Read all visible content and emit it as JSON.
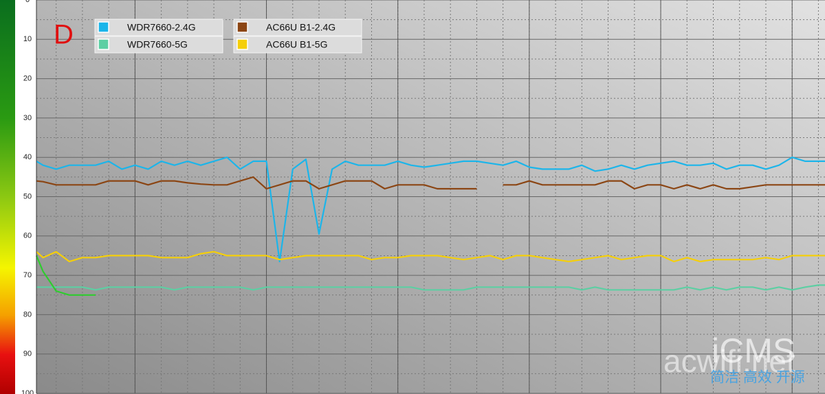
{
  "chart_data": {
    "type": "line",
    "annotation": "D",
    "watermark": [
      "acwifi.net",
      "iCMS",
      "简洁 高效 开源"
    ],
    "x": [
      -7.5,
      -7,
      -6,
      -5,
      -4,
      -3,
      -2,
      -1,
      0,
      1,
      2,
      3,
      4,
      5,
      6,
      7,
      8,
      9,
      10,
      11,
      12,
      13,
      14,
      15,
      16,
      17,
      18,
      19,
      20,
      21,
      22,
      23,
      24,
      25,
      26,
      27,
      28,
      29,
      30,
      31,
      32,
      33,
      34,
      35,
      36,
      37,
      38,
      39,
      40,
      41,
      42,
      43,
      44,
      45,
      46,
      47,
      48,
      49,
      50,
      51,
      52,
      52.5
    ],
    "xlim": [
      -7.5,
      52.5
    ],
    "xticks": [
      0,
      10,
      20,
      30,
      40,
      50
    ],
    "ylim": [
      0,
      100
    ],
    "y_inverted": true,
    "yticks": [
      0,
      10,
      20,
      30,
      40,
      50,
      60,
      70,
      80,
      90,
      100
    ],
    "grid": true,
    "legend_position": "top-left",
    "series": [
      {
        "name": "WDR7660-2.4G",
        "color": "#1bb5ea",
        "values": [
          41,
          42,
          43,
          42,
          42,
          42,
          41,
          43,
          42,
          43,
          41,
          42,
          41,
          42,
          41,
          40,
          43,
          41,
          41,
          66.5,
          43,
          40.5,
          59.5,
          43,
          41,
          42,
          42,
          42,
          41,
          42,
          42.5,
          42,
          41.5,
          41,
          41,
          41.5,
          42,
          41,
          42.5,
          43,
          43,
          43,
          42,
          43.5,
          43,
          42,
          43,
          42,
          41.5,
          41,
          42,
          42,
          41.5,
          43,
          42,
          42,
          43,
          42,
          40,
          41,
          41,
          41
        ]
      },
      {
        "name": "WDR7660-5G",
        "color": "#5ccfa3",
        "values": [
          73,
          73,
          73,
          73,
          73,
          73.7,
          73,
          73,
          73,
          73,
          73,
          73.7,
          73,
          73,
          73,
          73,
          73,
          73.7,
          73,
          73,
          73,
          73,
          73,
          73,
          73,
          73,
          73,
          73,
          73,
          73,
          73.7,
          73.7,
          73.7,
          73.7,
          73,
          73,
          73,
          73,
          73,
          73,
          73,
          73,
          73.7,
          73,
          73.7,
          73.7,
          73.7,
          73.7,
          73.7,
          73.7,
          73,
          73.7,
          73,
          73.7,
          73,
          73,
          73.7,
          73,
          73.7,
          73,
          72.5,
          72.5
        ]
      },
      {
        "name": "AC66U B1-2.4G",
        "color": "#8b4513",
        "values": [
          46,
          46.2,
          47,
          47,
          47,
          47,
          46,
          46,
          46,
          47,
          46,
          46,
          46.5,
          46.8,
          47,
          47,
          46,
          45,
          48,
          47,
          46,
          46,
          48,
          47,
          46,
          46,
          46,
          48,
          47,
          47,
          47,
          48,
          48,
          48,
          48,
          null,
          47,
          47,
          46,
          47,
          47,
          47,
          47,
          47,
          46,
          46,
          48,
          47,
          47,
          48,
          47,
          48,
          47,
          48,
          48,
          47.5,
          47,
          47,
          47,
          47,
          47,
          47
        ]
      },
      {
        "name": "AC66U B1-5G",
        "color": "#f5cf0a",
        "values": [
          64,
          65.5,
          64,
          66.5,
          65.5,
          65.5,
          65,
          65,
          65,
          65,
          65.5,
          65.5,
          65.5,
          64.5,
          64,
          65,
          65,
          65,
          65,
          66,
          65.5,
          65,
          65,
          65,
          65,
          65,
          66,
          65.5,
          65.5,
          65,
          65,
          65,
          65.5,
          66,
          65.5,
          65,
          66,
          65,
          65,
          65.5,
          66,
          66.5,
          66,
          65.5,
          65,
          66,
          65.5,
          65,
          65,
          66.5,
          65.5,
          66.5,
          66,
          66,
          66,
          66,
          65.5,
          66,
          65,
          65,
          65,
          65
        ]
      },
      {
        "color": "#2ecc2e",
        "values": [
          65,
          69,
          74,
          75,
          75,
          75,
          null,
          null,
          null,
          null,
          null,
          null,
          null,
          null,
          null,
          null,
          null,
          null,
          null,
          null,
          null,
          null,
          null,
          null,
          null,
          null,
          null,
          null,
          null,
          null,
          null,
          null,
          null,
          null,
          null,
          null,
          null,
          null,
          null,
          null,
          null,
          null,
          null,
          null,
          null,
          null,
          null,
          null,
          null,
          null,
          null,
          null,
          null,
          null,
          null,
          null,
          null,
          null,
          null,
          null,
          null,
          null
        ]
      }
    ]
  }
}
